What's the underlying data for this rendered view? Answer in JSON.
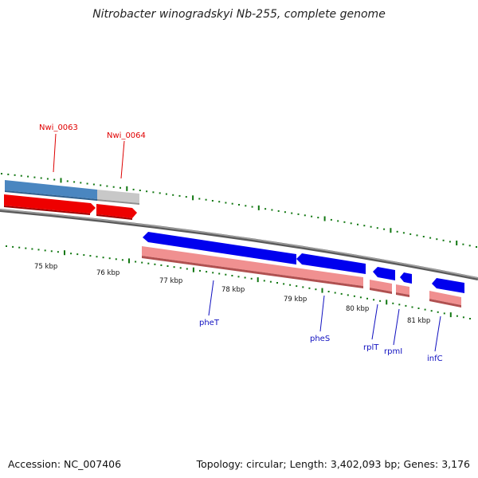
{
  "title": "Nitrobacter winogradskyi Nb-255, complete genome",
  "accession": "Accession: NC_007406",
  "topology": "Topology: circular; Length: 3,402,093 bp; Genes: 3,176",
  "colors": {
    "forward_cds": "#ee0000",
    "reverse_cds": "#0000ee",
    "gc_high": "#4a86c0",
    "gc_low": "#c8c8c8",
    "reverse_rna": "#f09090",
    "axis": "#7a7a7a",
    "tick": "#117711"
  },
  "kbp_labels": [
    "75 kbp",
    "76 kbp",
    "77 kbp",
    "78 kbp",
    "79 kbp",
    "80 kbp",
    "81 kbp"
  ],
  "outer_gene_labels": [
    {
      "name": "Nwi_0063",
      "color": "red"
    },
    {
      "name": "Nwi_0064",
      "color": "red"
    }
  ],
  "inner_gene_labels": [
    {
      "name": "pheT",
      "color": "blue"
    },
    {
      "name": "pheS",
      "color": "blue"
    },
    {
      "name": "rplT",
      "color": "blue"
    },
    {
      "name": "rpmI",
      "color": "blue"
    },
    {
      "name": "infC",
      "color": "blue"
    }
  ]
}
